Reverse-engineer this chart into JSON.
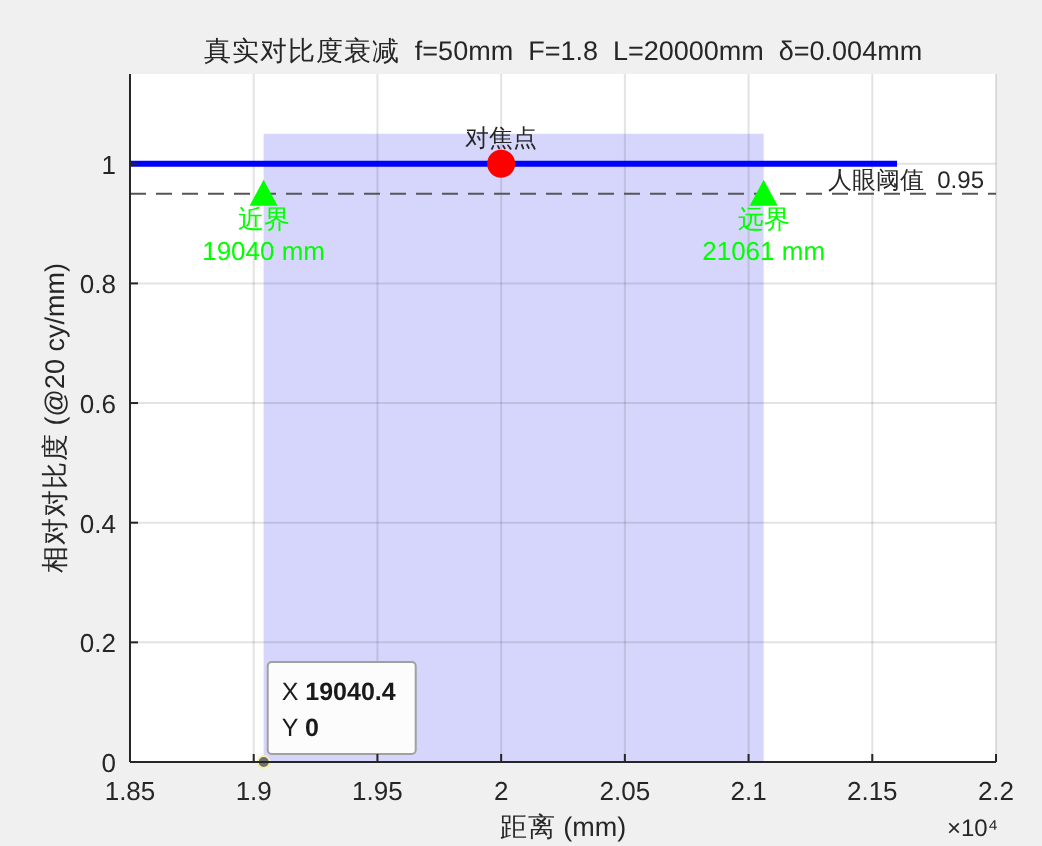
{
  "chart_data": {
    "type": "line",
    "title": "真实对比度衰减  f=50mm  F=1.8  L=20000mm  δ=0.004mm",
    "xlabel": "距离 (mm)",
    "ylabel": "相对对比度 (@20 cy/mm)",
    "xlim": [
      1.85,
      2.2
    ],
    "xticks": [
      1.85,
      1.9,
      1.95,
      2,
      2.05,
      2.1,
      2.15,
      2.2
    ],
    "ylim": [
      0,
      1.15
    ],
    "yticks": [
      0,
      0.2,
      0.4,
      0.6,
      0.8,
      1
    ],
    "grid": true,
    "series": [
      {
        "type": "area",
        "x": [
          1.904,
          2.1061
        ],
        "values": [
          1.05,
          1.05
        ],
        "color": "#d6d6fc"
      },
      {
        "x": [
          1.85,
          2.16
        ],
        "values": [
          1,
          1
        ],
        "color": "#0000ff"
      },
      {
        "type": "scatter",
        "x": [
          2
        ],
        "values": [
          1
        ],
        "color": "#ff0000",
        "marker": "circle"
      },
      {
        "type": "scatter",
        "x": [
          1.904,
          2.1061
        ],
        "values": [
          0.95,
          0.95
        ],
        "color": "#00ff00",
        "marker": "triangle"
      }
    ],
    "ref_lines": [
      {
        "axis": "y",
        "value": 0.95,
        "label": "人眼阈值  0.95",
        "color": "#555555",
        "line_style": "dashed"
      }
    ],
    "annotations": [
      {
        "text": "对焦点",
        "x": 2,
        "y": 1
      },
      {
        "text": "近界\n19040 mm",
        "x": 1.904,
        "y": 0.95
      },
      {
        "text": "远界\n21061 mm",
        "x": 2.1061,
        "y": 0.95
      },
      {
        "text": "X 19040.4\nY 0",
        "x": 1.90404,
        "y": 0
      },
      "×10⁴"
    ]
  }
}
